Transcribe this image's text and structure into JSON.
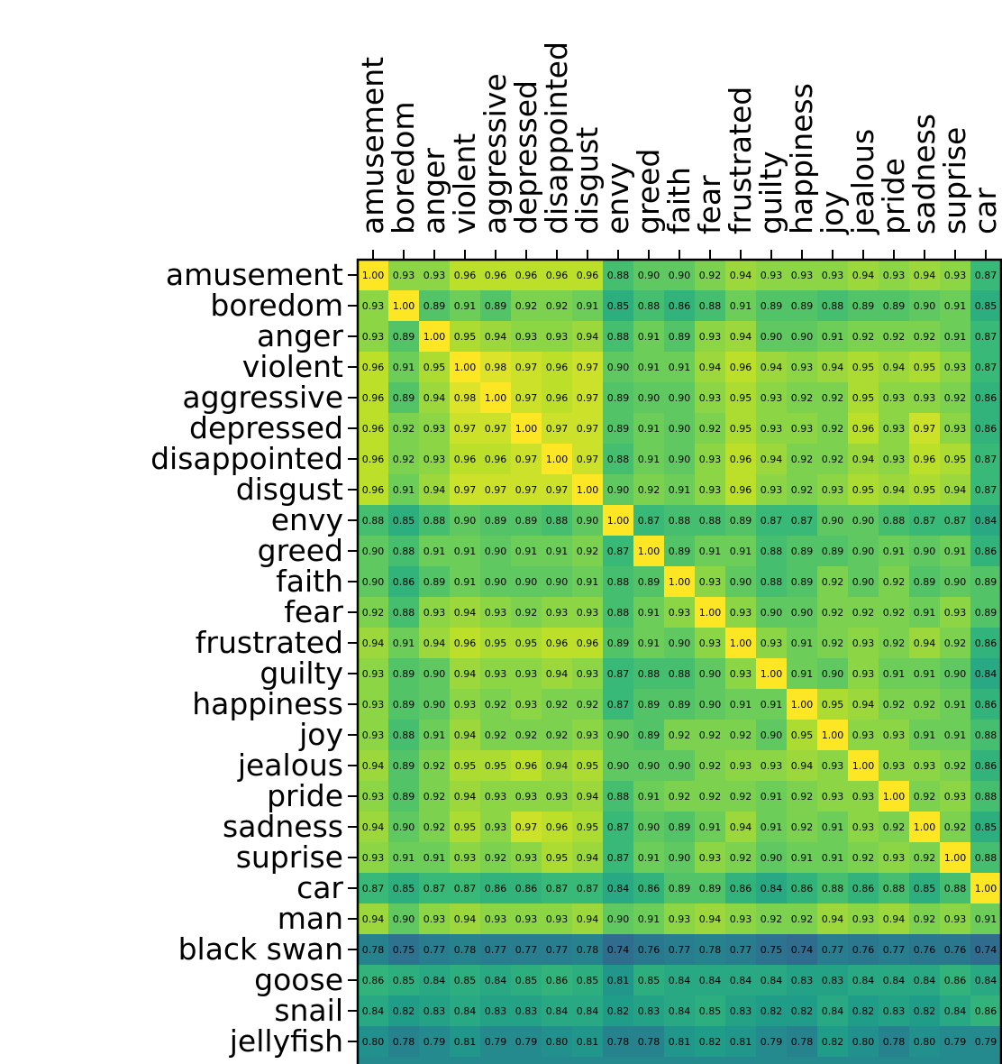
{
  "chart_data": {
    "type": "heatmap",
    "title": "",
    "xlabel": "",
    "ylabel": "",
    "colormap": "viridis",
    "value_range": [
      0.6,
      1.0
    ],
    "columns": [
      "amusement",
      "boredom",
      "anger",
      "violent",
      "aggressive",
      "depressed",
      "disappointed",
      "disgust",
      "envy",
      "greed",
      "faith",
      "fear",
      "frustrated",
      "guilty",
      "happiness",
      "joy",
      "jealous",
      "pride",
      "sadness",
      "suprise",
      "car"
    ],
    "rows": [
      "amusement",
      "boredom",
      "anger",
      "violent",
      "aggressive",
      "depressed",
      "disappointed",
      "disgust",
      "envy",
      "greed",
      "faith",
      "fear",
      "frustrated",
      "guilty",
      "happiness",
      "joy",
      "jealous",
      "pride",
      "sadness",
      "suprise",
      "car",
      "man",
      "black swan",
      "goose",
      "snail",
      "jellyfish"
    ],
    "values": [
      [
        "1.00",
        "0.93",
        "0.93",
        "0.96",
        "0.96",
        "0.96",
        "0.96",
        "0.96",
        "0.88",
        "0.90",
        "0.90",
        "0.92",
        "0.94",
        "0.93",
        "0.93",
        "0.93",
        "0.94",
        "0.93",
        "0.94",
        "0.93",
        "0.87"
      ],
      [
        "0.93",
        "1.00",
        "0.89",
        "0.91",
        "0.89",
        "0.92",
        "0.92",
        "0.91",
        "0.85",
        "0.88",
        "0.86",
        "0.88",
        "0.91",
        "0.89",
        "0.89",
        "0.88",
        "0.89",
        "0.89",
        "0.90",
        "0.91",
        "0.85"
      ],
      [
        "0.93",
        "0.89",
        "1.00",
        "0.95",
        "0.94",
        "0.93",
        "0.93",
        "0.94",
        "0.88",
        "0.91",
        "0.89",
        "0.93",
        "0.94",
        "0.90",
        "0.90",
        "0.91",
        "0.92",
        "0.92",
        "0.92",
        "0.91",
        "0.87"
      ],
      [
        "0.96",
        "0.91",
        "0.95",
        "1.00",
        "0.98",
        "0.97",
        "0.96",
        "0.97",
        "0.90",
        "0.91",
        "0.91",
        "0.94",
        "0.96",
        "0.94",
        "0.93",
        "0.94",
        "0.95",
        "0.94",
        "0.95",
        "0.93",
        "0.87"
      ],
      [
        "0.96",
        "0.89",
        "0.94",
        "0.98",
        "1.00",
        "0.97",
        "0.96",
        "0.97",
        "0.89",
        "0.90",
        "0.90",
        "0.93",
        "0.95",
        "0.93",
        "0.92",
        "0.92",
        "0.95",
        "0.93",
        "0.93",
        "0.92",
        "0.86"
      ],
      [
        "0.96",
        "0.92",
        "0.93",
        "0.97",
        "0.97",
        "1.00",
        "0.97",
        "0.97",
        "0.89",
        "0.91",
        "0.90",
        "0.92",
        "0.95",
        "0.93",
        "0.93",
        "0.92",
        "0.96",
        "0.93",
        "0.97",
        "0.93",
        "0.86"
      ],
      [
        "0.96",
        "0.92",
        "0.93",
        "0.96",
        "0.96",
        "0.97",
        "1.00",
        "0.97",
        "0.88",
        "0.91",
        "0.90",
        "0.93",
        "0.96",
        "0.94",
        "0.92",
        "0.92",
        "0.94",
        "0.93",
        "0.96",
        "0.95",
        "0.87"
      ],
      [
        "0.96",
        "0.91",
        "0.94",
        "0.97",
        "0.97",
        "0.97",
        "0.97",
        "1.00",
        "0.90",
        "0.92",
        "0.91",
        "0.93",
        "0.96",
        "0.93",
        "0.92",
        "0.93",
        "0.95",
        "0.94",
        "0.95",
        "0.94",
        "0.87"
      ],
      [
        "0.88",
        "0.85",
        "0.88",
        "0.90",
        "0.89",
        "0.89",
        "0.88",
        "0.90",
        "1.00",
        "0.87",
        "0.88",
        "0.88",
        "0.89",
        "0.87",
        "0.87",
        "0.90",
        "0.90",
        "0.88",
        "0.87",
        "0.87",
        "0.84"
      ],
      [
        "0.90",
        "0.88",
        "0.91",
        "0.91",
        "0.90",
        "0.91",
        "0.91",
        "0.92",
        "0.87",
        "1.00",
        "0.89",
        "0.91",
        "0.91",
        "0.88",
        "0.89",
        "0.89",
        "0.90",
        "0.91",
        "0.90",
        "0.91",
        "0.86"
      ],
      [
        "0.90",
        "0.86",
        "0.89",
        "0.91",
        "0.90",
        "0.90",
        "0.90",
        "0.91",
        "0.88",
        "0.89",
        "1.00",
        "0.93",
        "0.90",
        "0.88",
        "0.89",
        "0.92",
        "0.90",
        "0.92",
        "0.89",
        "0.90",
        "0.89"
      ],
      [
        "0.92",
        "0.88",
        "0.93",
        "0.94",
        "0.93",
        "0.92",
        "0.93",
        "0.93",
        "0.88",
        "0.91",
        "0.93",
        "1.00",
        "0.93",
        "0.90",
        "0.90",
        "0.92",
        "0.92",
        "0.92",
        "0.91",
        "0.93",
        "0.89"
      ],
      [
        "0.94",
        "0.91",
        "0.94",
        "0.96",
        "0.95",
        "0.95",
        "0.96",
        "0.96",
        "0.89",
        "0.91",
        "0.90",
        "0.93",
        "1.00",
        "0.93",
        "0.91",
        "0.92",
        "0.93",
        "0.92",
        "0.94",
        "0.92",
        "0.86"
      ],
      [
        "0.93",
        "0.89",
        "0.90",
        "0.94",
        "0.93",
        "0.93",
        "0.94",
        "0.93",
        "0.87",
        "0.88",
        "0.88",
        "0.90",
        "0.93",
        "1.00",
        "0.91",
        "0.90",
        "0.93",
        "0.91",
        "0.91",
        "0.90",
        "0.84"
      ],
      [
        "0.93",
        "0.89",
        "0.90",
        "0.93",
        "0.92",
        "0.93",
        "0.92",
        "0.92",
        "0.87",
        "0.89",
        "0.89",
        "0.90",
        "0.91",
        "0.91",
        "1.00",
        "0.95",
        "0.94",
        "0.92",
        "0.92",
        "0.91",
        "0.86"
      ],
      [
        "0.93",
        "0.88",
        "0.91",
        "0.94",
        "0.92",
        "0.92",
        "0.92",
        "0.93",
        "0.90",
        "0.89",
        "0.92",
        "0.92",
        "0.92",
        "0.90",
        "0.95",
        "1.00",
        "0.93",
        "0.93",
        "0.91",
        "0.91",
        "0.88"
      ],
      [
        "0.94",
        "0.89",
        "0.92",
        "0.95",
        "0.95",
        "0.96",
        "0.94",
        "0.95",
        "0.90",
        "0.90",
        "0.90",
        "0.92",
        "0.93",
        "0.93",
        "0.94",
        "0.93",
        "1.00",
        "0.93",
        "0.93",
        "0.92",
        "0.86"
      ],
      [
        "0.93",
        "0.89",
        "0.92",
        "0.94",
        "0.93",
        "0.93",
        "0.93",
        "0.94",
        "0.88",
        "0.91",
        "0.92",
        "0.92",
        "0.92",
        "0.91",
        "0.92",
        "0.93",
        "0.93",
        "1.00",
        "0.92",
        "0.93",
        "0.88"
      ],
      [
        "0.94",
        "0.90",
        "0.92",
        "0.95",
        "0.93",
        "0.97",
        "0.96",
        "0.95",
        "0.87",
        "0.90",
        "0.89",
        "0.91",
        "0.94",
        "0.91",
        "0.92",
        "0.91",
        "0.93",
        "0.92",
        "1.00",
        "0.92",
        "0.85"
      ],
      [
        "0.93",
        "0.91",
        "0.91",
        "0.93",
        "0.92",
        "0.93",
        "0.95",
        "0.94",
        "0.87",
        "0.91",
        "0.90",
        "0.93",
        "0.92",
        "0.90",
        "0.91",
        "0.91",
        "0.92",
        "0.93",
        "0.92",
        "1.00",
        "0.88"
      ],
      [
        "0.87",
        "0.85",
        "0.87",
        "0.87",
        "0.86",
        "0.86",
        "0.87",
        "0.87",
        "0.84",
        "0.86",
        "0.89",
        "0.89",
        "0.86",
        "0.84",
        "0.86",
        "0.88",
        "0.86",
        "0.88",
        "0.85",
        "0.88",
        "1.00"
      ],
      [
        "0.94",
        "0.90",
        "0.93",
        "0.94",
        "0.93",
        "0.93",
        "0.93",
        "0.94",
        "0.90",
        "0.91",
        "0.93",
        "0.94",
        "0.93",
        "0.92",
        "0.92",
        "0.94",
        "0.93",
        "0.94",
        "0.92",
        "0.93",
        "0.91"
      ],
      [
        "0.78",
        "0.75",
        "0.77",
        "0.78",
        "0.77",
        "0.77",
        "0.77",
        "0.78",
        "0.74",
        "0.76",
        "0.77",
        "0.78",
        "0.77",
        "0.75",
        "0.74",
        "0.77",
        "0.76",
        "0.77",
        "0.76",
        "0.76",
        "0.74"
      ],
      [
        "0.86",
        "0.85",
        "0.84",
        "0.85",
        "0.84",
        "0.85",
        "0.86",
        "0.85",
        "0.81",
        "0.85",
        "0.84",
        "0.84",
        "0.84",
        "0.84",
        "0.83",
        "0.83",
        "0.84",
        "0.84",
        "0.84",
        "0.86",
        "0.84"
      ],
      [
        "0.84",
        "0.82",
        "0.83",
        "0.84",
        "0.83",
        "0.83",
        "0.84",
        "0.84",
        "0.82",
        "0.83",
        "0.84",
        "0.85",
        "0.83",
        "0.82",
        "0.82",
        "0.84",
        "0.82",
        "0.83",
        "0.82",
        "0.84",
        "0.86"
      ],
      [
        "0.80",
        "0.78",
        "0.79",
        "0.81",
        "0.79",
        "0.79",
        "0.80",
        "0.81",
        "0.78",
        "0.78",
        "0.81",
        "0.82",
        "0.81",
        "0.79",
        "0.78",
        "0.82",
        "0.80",
        "0.78",
        "0.80",
        "0.79",
        "0.79"
      ]
    ]
  }
}
